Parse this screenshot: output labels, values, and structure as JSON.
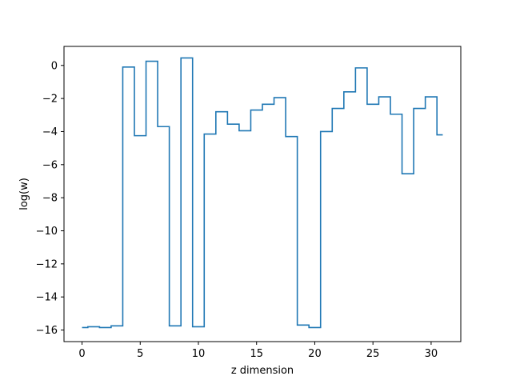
{
  "chart_data": {
    "type": "line",
    "drawstyle": "steps-mid",
    "title": "",
    "xlabel": "z dimension",
    "ylabel": "log(w)",
    "xlim": [
      -1.55,
      32.55
    ],
    "ylim": [
      -16.7,
      1.15
    ],
    "xticks": [
      0,
      5,
      10,
      15,
      20,
      25,
      30
    ],
    "xtick_labels": [
      "0",
      "5",
      "10",
      "15",
      "20",
      "25",
      "30"
    ],
    "yticks": [
      0,
      -2,
      -4,
      -6,
      -8,
      -10,
      -12,
      -14,
      -16
    ],
    "ytick_labels": [
      "0",
      "−2",
      "−4",
      "−6",
      "−8",
      "−10",
      "−12",
      "−14",
      "−16"
    ],
    "grid": false,
    "legend": "none",
    "series": [
      {
        "color": "#1f77b4",
        "x": [
          0,
          1,
          2,
          3,
          4,
          5,
          6,
          7,
          8,
          9,
          10,
          11,
          12,
          13,
          14,
          15,
          16,
          17,
          18,
          19,
          20,
          21,
          22,
          23,
          24,
          25,
          26,
          27,
          28,
          29,
          30,
          31
        ],
        "values": [
          -15.85,
          -15.8,
          -15.85,
          -15.75,
          -0.1,
          -4.25,
          0.25,
          -3.7,
          -15.75,
          0.45,
          -15.8,
          -4.15,
          -2.8,
          -3.55,
          -3.95,
          -2.7,
          -2.35,
          -1.95,
          -4.3,
          -15.7,
          -15.85,
          -4.0,
          -2.6,
          -1.6,
          -0.15,
          -2.35,
          -1.9,
          -2.95,
          -6.55,
          -2.6,
          -1.9,
          -4.2
        ]
      }
    ]
  }
}
